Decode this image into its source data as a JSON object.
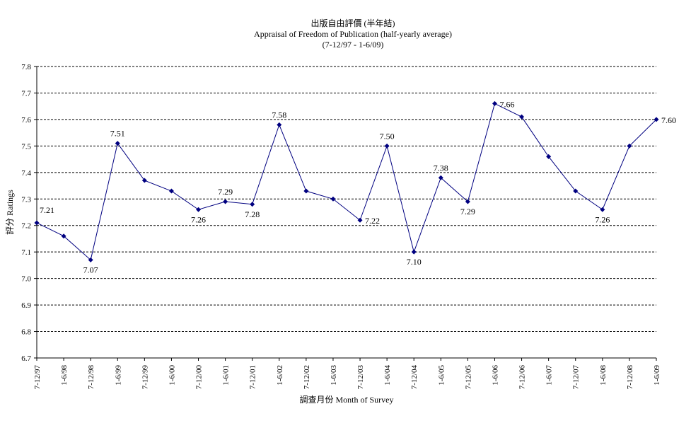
{
  "chart_data": {
    "type": "line",
    "title": "出版自由評價 (半年結)",
    "subtitle": "Appraisal of Freedom of Publication (half-yearly average)",
    "subtitle2": "(7-12/97 - 1-6/09)",
    "xlabel": "調查月份 Month of Survey",
    "ylabel": "評分 Ratings",
    "ylim": [
      6.7,
      7.8
    ],
    "yticks": [
      "7.8",
      "7.7",
      "7.6",
      "7.5",
      "7.4",
      "7.3",
      "7.2",
      "7.1",
      "7.0",
      "6.9",
      "6.8",
      "6.7"
    ],
    "grid": true,
    "line_color": "#000080",
    "categories": [
      "7-12/97",
      "1-6/98",
      "7-12/98",
      "1-6/99",
      "7-12/99",
      "1-6/00",
      "7-12/00",
      "1-6/01",
      "7-12/01",
      "1-6/02",
      "7-12/02",
      "1-6/03",
      "7-12/03",
      "1-6/04",
      "7-12/04",
      "1-6/05",
      "7-12/05",
      "1-6/06",
      "7-12/06",
      "1-6/07",
      "7-12/07",
      "1-6/08",
      "7-12/08",
      "1-6/09"
    ],
    "series": [
      {
        "values": [
          7.21,
          7.16,
          7.07,
          7.51,
          7.37,
          7.33,
          7.26,
          7.29,
          7.28,
          7.58,
          7.33,
          7.3,
          7.22,
          7.5,
          7.1,
          7.38,
          7.29,
          7.66,
          7.61,
          7.46,
          7.33,
          7.26,
          7.5,
          7.6
        ]
      }
    ],
    "data_labels": [
      {
        "index": 0,
        "text": "7.21",
        "pos": "above-right"
      },
      {
        "index": 2,
        "text": "7.07",
        "pos": "below"
      },
      {
        "index": 3,
        "text": "7.51",
        "pos": "above"
      },
      {
        "index": 6,
        "text": "7.26",
        "pos": "below"
      },
      {
        "index": 7,
        "text": "7.29",
        "pos": "above"
      },
      {
        "index": 8,
        "text": "7.28",
        "pos": "below"
      },
      {
        "index": 9,
        "text": "7.58",
        "pos": "above"
      },
      {
        "index": 12,
        "text": "7.22",
        "pos": "right"
      },
      {
        "index": 13,
        "text": "7.50",
        "pos": "above"
      },
      {
        "index": 14,
        "text": "7.10",
        "pos": "below"
      },
      {
        "index": 15,
        "text": "7.38",
        "pos": "above"
      },
      {
        "index": 16,
        "text": "7.29",
        "pos": "below"
      },
      {
        "index": 17,
        "text": "7.66",
        "pos": "right"
      },
      {
        "index": 21,
        "text": "7.26",
        "pos": "below"
      },
      {
        "index": 23,
        "text": "7.60",
        "pos": "right"
      }
    ]
  }
}
